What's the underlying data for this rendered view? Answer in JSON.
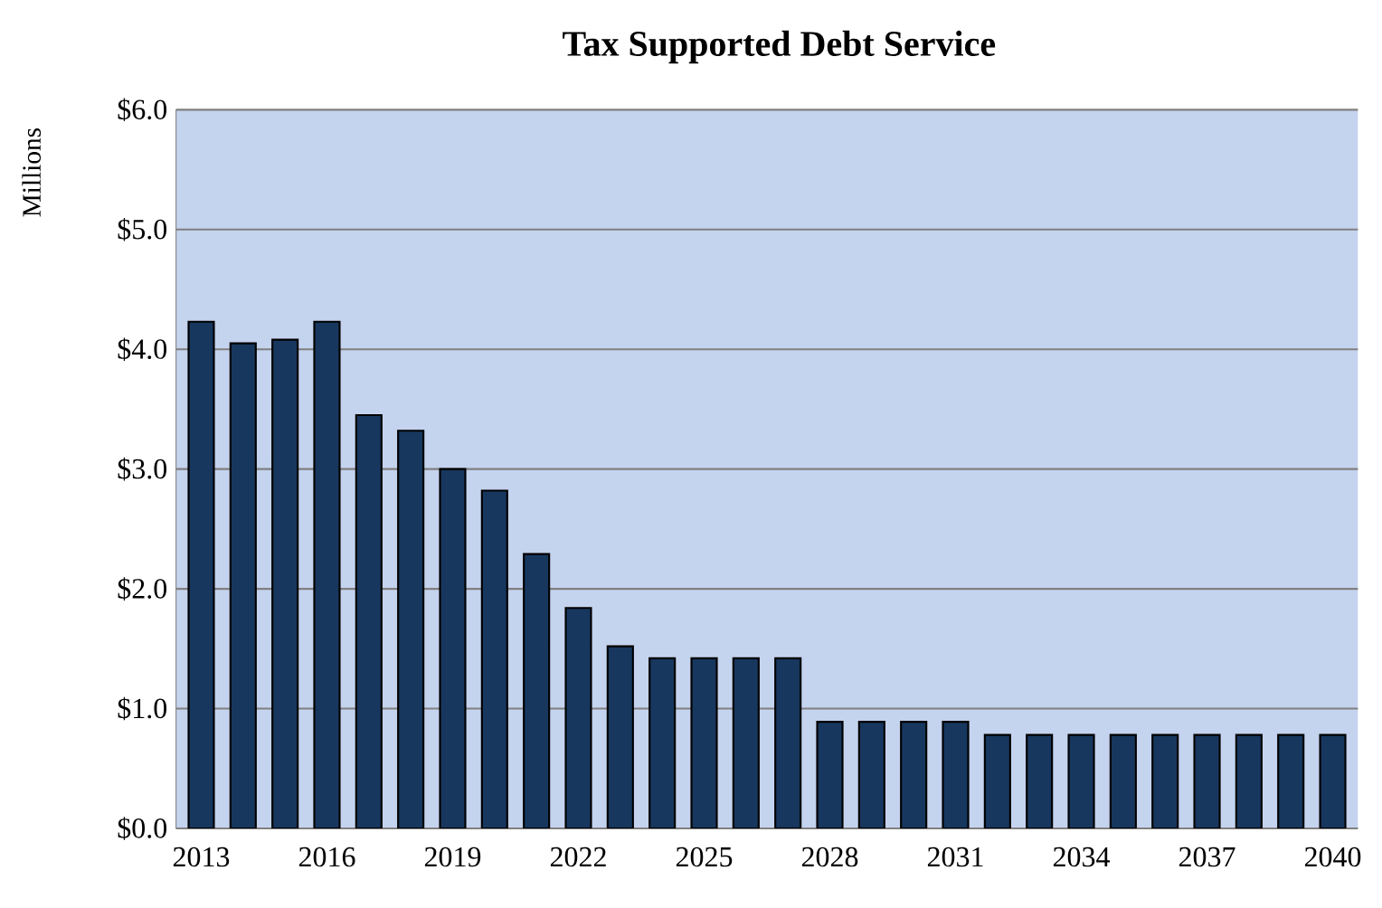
{
  "chart_data": {
    "type": "bar",
    "title": "Tax Supported Debt Service",
    "ylabel": "Millions",
    "categories": [
      "2013",
      null,
      null,
      "2016",
      null,
      null,
      "2019",
      null,
      null,
      "2022",
      null,
      null,
      "2025",
      null,
      null,
      "2028",
      null,
      null,
      "2031",
      null,
      null,
      "2034",
      null,
      null,
      "2037",
      null,
      null,
      "2040"
    ],
    "values": [
      4.23,
      4.05,
      4.08,
      4.23,
      3.45,
      3.32,
      3.0,
      2.82,
      2.29,
      1.84,
      1.52,
      1.42,
      1.42,
      1.42,
      1.42,
      0.89,
      0.89,
      0.89,
      0.89,
      0.78,
      0.78,
      0.78,
      0.78,
      0.78,
      0.78,
      0.78,
      0.78,
      0.78
    ],
    "color": "#17375e",
    "ylim": [
      0,
      6
    ],
    "yticks": [
      {
        "value": 0,
        "label": "$0.0"
      },
      {
        "value": 1,
        "label": "$1.0"
      },
      {
        "value": 2,
        "label": "$2.0"
      },
      {
        "value": 3,
        "label": "$3.0"
      },
      {
        "value": 4,
        "label": "$4.0"
      },
      {
        "value": 5,
        "label": "$5.0"
      },
      {
        "value": 6,
        "label": "$6.0"
      }
    ],
    "grid": "y"
  }
}
